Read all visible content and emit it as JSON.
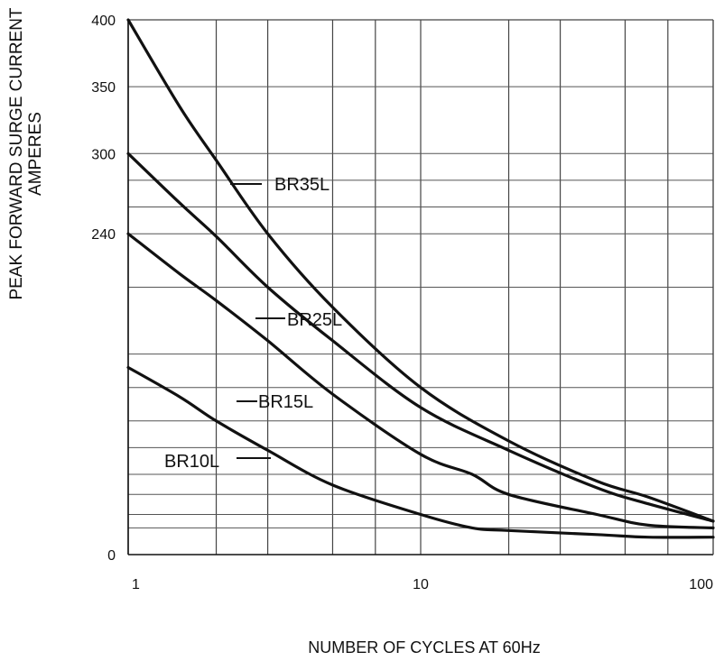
{
  "chart_data": {
    "type": "line",
    "xscale": "log",
    "xlim": [
      1,
      100
    ],
    "ylim": [
      0,
      400
    ],
    "x_ticks": [
      "1",
      "10",
      "100"
    ],
    "y_ticks": [
      "400",
      "350",
      "300",
      "240",
      "0"
    ],
    "ylabel": [
      "PEAK FORWARD SURGE CURRENT",
      "AMPERES"
    ],
    "xlabel": "NUMBER OF CYCLES AT 60Hz",
    "grid": true,
    "series": [
      {
        "name": "BR35L",
        "x": [
          1,
          1.5,
          2,
          3,
          5,
          10,
          20,
          40,
          60,
          100
        ],
        "y": [
          400,
          335,
          295,
          240,
          185,
          125,
          85,
          55,
          43,
          25
        ]
      },
      {
        "name": "BR25L",
        "x": [
          1,
          1.5,
          2,
          3,
          5,
          10,
          20,
          40,
          60,
          100
        ],
        "y": [
          300,
          263,
          238,
          200,
          160,
          110,
          78,
          50,
          38,
          25
        ]
      },
      {
        "name": "BR15L",
        "x": [
          1,
          1.5,
          2,
          3,
          5,
          10,
          15,
          20,
          40,
          60,
          100
        ],
        "y": [
          240,
          210,
          190,
          160,
          120,
          75,
          60,
          45,
          30,
          22,
          20
        ]
      },
      {
        "name": "BR10L",
        "x": [
          1,
          1.5,
          2,
          3,
          5,
          10,
          15,
          20,
          40,
          60,
          100
        ],
        "y": [
          140,
          118,
          100,
          78,
          52,
          30,
          20,
          18,
          15,
          13,
          13
        ]
      }
    ]
  }
}
